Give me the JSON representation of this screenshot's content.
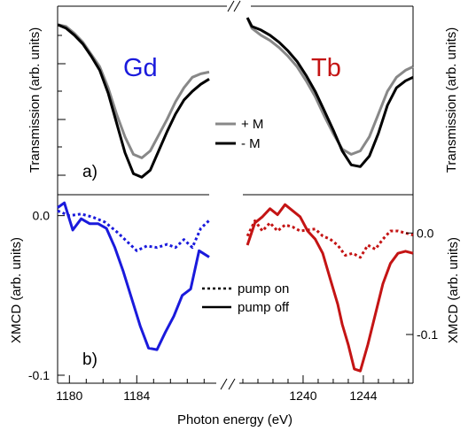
{
  "chart_data": {
    "type": "line",
    "xlabel": "Photon energy (eV)",
    "panels": [
      {
        "label": "a)",
        "ylabel_left": "Transmission (arb. units)",
        "ylabel_right": "Transmission (arb. units)",
        "legend": [
          "+ M",
          "- M"
        ],
        "elements": [
          {
            "element_label": "Gd",
            "xlim": [
              1179.3,
              1188.3
            ],
            "ylim": [
              0,
              1
            ],
            "series": [
              {
                "name": "+ M",
                "color": "#888888",
                "x": [
                  1179.3,
                  1179.8,
                  1180.3,
                  1180.8,
                  1181.3,
                  1181.8,
                  1182.3,
                  1182.8,
                  1183.3,
                  1183.8,
                  1184.3,
                  1184.8,
                  1185.3,
                  1185.8,
                  1186.3,
                  1186.8,
                  1187.3,
                  1187.8,
                  1188.3
                ],
                "y": [
                  0.96,
                  0.95,
                  0.91,
                  0.86,
                  0.79,
                  0.72,
                  0.6,
                  0.45,
                  0.32,
                  0.22,
                  0.2,
                  0.24,
                  0.33,
                  0.42,
                  0.52,
                  0.6,
                  0.66,
                  0.68,
                  0.69
                ]
              },
              {
                "name": "- M",
                "color": "#000000",
                "x": [
                  1179.3,
                  1179.8,
                  1180.3,
                  1180.8,
                  1181.3,
                  1181.8,
                  1182.3,
                  1182.8,
                  1183.3,
                  1183.8,
                  1184.3,
                  1184.8,
                  1185.3,
                  1185.8,
                  1186.3,
                  1186.8,
                  1187.3,
                  1187.8,
                  1188.3
                ],
                "y": [
                  0.96,
                  0.94,
                  0.9,
                  0.85,
                  0.78,
                  0.7,
                  0.57,
                  0.4,
                  0.23,
                  0.11,
                  0.09,
                  0.13,
                  0.24,
                  0.35,
                  0.45,
                  0.53,
                  0.58,
                  0.62,
                  0.65
                ]
              }
            ]
          },
          {
            "element_label": "Tb",
            "xlim": [
              1236.0,
              1247.3
            ],
            "ylim": [
              0,
              1
            ],
            "series": [
              {
                "name": "+ M",
                "color": "#888888",
                "x": [
                  1236.3,
                  1236.6,
                  1237.2,
                  1237.8,
                  1238.4,
                  1239.0,
                  1239.6,
                  1240.2,
                  1240.8,
                  1241.4,
                  1242.0,
                  1242.6,
                  1243.2,
                  1243.8,
                  1244.4,
                  1245.0,
                  1245.6,
                  1246.2,
                  1246.8,
                  1247.3
                ],
                "y": [
                  1.0,
                  0.94,
                  0.9,
                  0.87,
                  0.83,
                  0.78,
                  0.72,
                  0.64,
                  0.55,
                  0.44,
                  0.34,
                  0.25,
                  0.22,
                  0.24,
                  0.32,
                  0.45,
                  0.58,
                  0.66,
                  0.7,
                  0.72
                ]
              },
              {
                "name": "- M",
                "color": "#000000",
                "x": [
                  1236.3,
                  1236.6,
                  1237.2,
                  1237.8,
                  1238.4,
                  1239.0,
                  1239.6,
                  1240.2,
                  1240.8,
                  1241.4,
                  1242.0,
                  1242.6,
                  1243.2,
                  1243.8,
                  1244.4,
                  1245.0,
                  1245.6,
                  1246.2,
                  1246.8,
                  1247.3
                ],
                "y": [
                  1.0,
                  0.95,
                  0.93,
                  0.9,
                  0.86,
                  0.81,
                  0.75,
                  0.67,
                  0.58,
                  0.47,
                  0.36,
                  0.24,
                  0.16,
                  0.15,
                  0.21,
                  0.34,
                  0.5,
                  0.6,
                  0.64,
                  0.66
                ]
              }
            ]
          }
        ]
      },
      {
        "label": "b)",
        "ylabel_left": "XMCD (arb. units)",
        "ylabel_right": "XMCD (arb. units)",
        "legend": [
          "pump on",
          "pump off"
        ],
        "elements": [
          {
            "element_label": "Gd",
            "xlim": [
              1179.3,
              1188.3
            ],
            "ylim": [
              -0.105,
              0.012
            ],
            "yticks": [
              0.0,
              -0.1
            ],
            "ytick_labels": [
              "0.0",
              "-0.1"
            ],
            "series": [
              {
                "name": "pump on",
                "color": "#1a1adc",
                "dash": true,
                "x": [
                  1179.3,
                  1180.0,
                  1180.7,
                  1181.4,
                  1182.1,
                  1182.8,
                  1183.4,
                  1184.0,
                  1184.6,
                  1185.2,
                  1185.8,
                  1186.3,
                  1186.8,
                  1187.3,
                  1187.8,
                  1188.3
                ],
                "y": [
                  0.003,
                  0.0,
                  0.001,
                  -0.001,
                  -0.004,
                  -0.01,
                  -0.016,
                  -0.022,
                  -0.019,
                  -0.02,
                  -0.018,
                  -0.02,
                  -0.015,
                  -0.02,
                  -0.008,
                  -0.003
                ]
              },
              {
                "name": "pump off",
                "color": "#1a1adc",
                "dash": false,
                "x": [
                  1179.3,
                  1179.7,
                  1180.2,
                  1180.7,
                  1181.2,
                  1181.7,
                  1182.2,
                  1182.7,
                  1183.2,
                  1183.7,
                  1184.2,
                  1184.7,
                  1185.2,
                  1185.7,
                  1186.2,
                  1186.7,
                  1187.2,
                  1187.7,
                  1188.3
                ],
                "y": [
                  0.005,
                  0.008,
                  -0.009,
                  -0.002,
                  -0.005,
                  -0.005,
                  -0.008,
                  -0.02,
                  -0.035,
                  -0.052,
                  -0.069,
                  -0.083,
                  -0.084,
                  -0.073,
                  -0.063,
                  -0.05,
                  -0.046,
                  -0.022,
                  -0.026
                ]
              }
            ]
          },
          {
            "element_label": "Tb",
            "xlim": [
              1236.0,
              1247.3
            ],
            "ylim": [
              -0.148,
              0.036
            ],
            "yticks": [
              0.0,
              -0.1
            ],
            "ytick_labels": [
              "0.0",
              "-0.1"
            ],
            "series": [
              {
                "name": "pump on",
                "color": "#c41414",
                "dash": true,
                "x": [
                  1236.3,
                  1236.8,
                  1237.3,
                  1237.8,
                  1238.3,
                  1238.8,
                  1239.3,
                  1239.8,
                  1240.3,
                  1240.8,
                  1241.3,
                  1241.8,
                  1242.3,
                  1242.8,
                  1243.3,
                  1243.8,
                  1244.3,
                  1244.8,
                  1245.3,
                  1245.8,
                  1246.3,
                  1246.8,
                  1247.3
                ],
                "y": [
                  -0.003,
                  0.012,
                  0.002,
                  0.01,
                  0.002,
                  0.008,
                  0.006,
                  0.002,
                  0.003,
                  0.004,
                  -0.003,
                  -0.006,
                  -0.012,
                  -0.022,
                  -0.02,
                  -0.024,
                  -0.012,
                  -0.016,
                  -0.006,
                  0.002,
                  0.002,
                  0.0,
                  -0.002
                ]
              },
              {
                "name": "pump off",
                "color": "#c41414",
                "dash": false,
                "x": [
                  1236.3,
                  1236.8,
                  1237.3,
                  1237.8,
                  1238.3,
                  1238.8,
                  1239.3,
                  1239.8,
                  1240.3,
                  1240.8,
                  1241.3,
                  1241.8,
                  1242.3,
                  1242.6,
                  1243.0,
                  1243.4,
                  1243.8,
                  1244.3,
                  1244.8,
                  1245.3,
                  1245.8,
                  1246.3,
                  1246.8,
                  1247.3
                ],
                "y": [
                  -0.012,
                  0.01,
                  0.016,
                  0.024,
                  0.018,
                  0.028,
                  0.022,
                  0.016,
                  0.002,
                  -0.006,
                  -0.02,
                  -0.045,
                  -0.07,
                  -0.09,
                  -0.11,
                  -0.134,
                  -0.136,
                  -0.11,
                  -0.08,
                  -0.05,
                  -0.03,
                  -0.02,
                  -0.018,
                  -0.02
                ]
              }
            ]
          }
        ]
      }
    ],
    "xticks": {
      "left": [
        1180,
        1184
      ],
      "right": [
        1240,
        1244
      ]
    }
  }
}
